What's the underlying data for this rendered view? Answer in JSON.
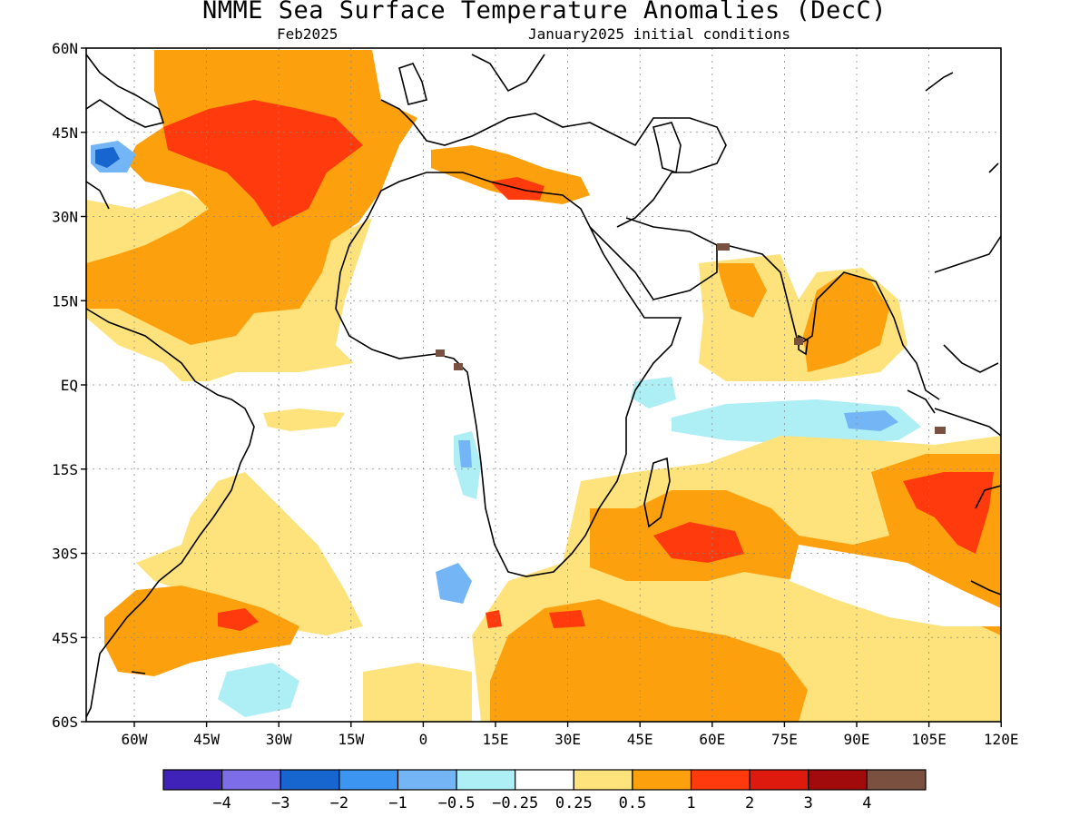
{
  "header": {
    "title": "NMME Sea Surface Temperature Anomalies (DecC)",
    "valid_month": "Feb2025",
    "init": "January2025 initial conditions"
  },
  "map": {
    "lat_labels": [
      "60N",
      "45N",
      "30N",
      "15N",
      "EQ",
      "15S",
      "30S",
      "45S",
      "60S"
    ],
    "lon_labels": [
      "60W",
      "45W",
      "30W",
      "15W",
      "0",
      "15E",
      "30E",
      "45E",
      "60E",
      "75E",
      "90E",
      "105E",
      "120E"
    ],
    "grid": "dotted",
    "region": "Atlantic and Indian Ocean, 70W-120E, 60S-60N"
  },
  "colorbar": {
    "colors": [
      "#3f22b7",
      "#7d6ee8",
      "#1766cf",
      "#3c95f0",
      "#74b6f5",
      "#aeeef5",
      "#ffffff",
      "#fee27b",
      "#fda00d",
      "#ff3b0e",
      "#de1a0f",
      "#a10b0b",
      "#7a5040"
    ],
    "labels": [
      "-4",
      "-3",
      "-2",
      "-1",
      "-0.5",
      "-0.25",
      "0.25",
      "0.5",
      "1",
      "2",
      "3",
      "4"
    ]
  }
}
